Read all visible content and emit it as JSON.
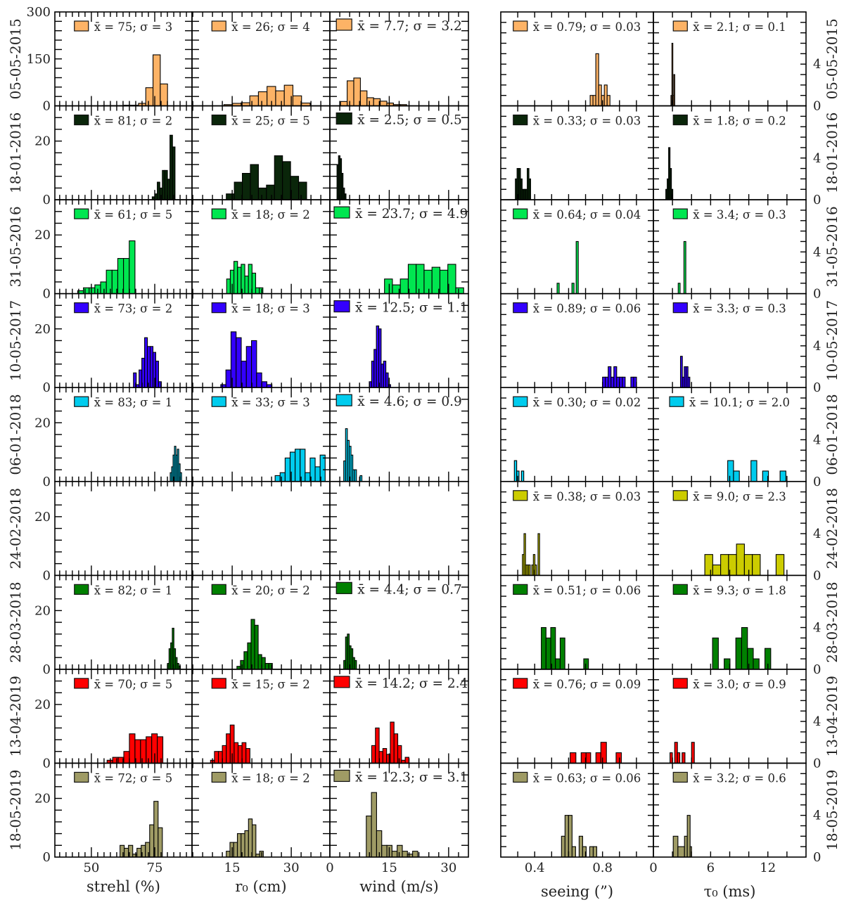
{
  "chart_data": {
    "type": "bar",
    "grid": false,
    "columns": [
      {
        "key": "strehl",
        "xlabel": "strehl (%)",
        "xlim": [
          35.6,
          89.7
        ],
        "xticks": [
          "50",
          "75"
        ],
        "xtick_values": [
          50,
          75
        ],
        "minor_step": 2.5,
        "group": "left"
      },
      {
        "key": "r0",
        "xlabel": "r₀ (cm)",
        "xlim": [
          4.8,
          39.8
        ],
        "xticks": [
          "15",
          "30"
        ],
        "xtick_values": [
          15,
          30
        ],
        "minor_step": 2.5,
        "group": "left"
      },
      {
        "key": "wind",
        "xlabel": "wind (m/s)",
        "xlim": [
          0,
          35
        ],
        "xticks": [
          "0",
          "15",
          "30"
        ],
        "xtick_values": [
          0,
          15,
          30
        ],
        "minor_step": 2.5,
        "group": "left"
      },
      {
        "key": "seeing",
        "xlabel": "seeing (”)",
        "xlim": [
          0.2,
          1.1
        ],
        "xticks": [
          "0.4",
          "0.8"
        ],
        "xtick_values": [
          0.4,
          0.8
        ],
        "minor_step": 0.1,
        "group": "right"
      },
      {
        "key": "tau0",
        "xlabel": "τ₀ (ms)",
        "xlim": [
          0,
          16
        ],
        "xticks": [
          "0",
          "6",
          "12"
        ],
        "xtick_values": [
          0,
          6,
          12
        ],
        "minor_step": 2,
        "group": "right"
      }
    ],
    "left_ylim_first_row": [
      0,
      300
    ],
    "left_yticks_first_row": [
      "300",
      "150",
      "0"
    ],
    "left_ytick_values_first_row": [
      300,
      150,
      0
    ],
    "left_ystep_first_row": 30,
    "left_ylim": [
      0,
      32
    ],
    "left_yticks": [
      "20",
      "0"
    ],
    "left_ytick_values": [
      20,
      0
    ],
    "left_ystep": 4,
    "right_ylim": [
      0,
      9
    ],
    "right_yticks": [
      "4",
      "0"
    ],
    "right_ytick_values": [
      4,
      0
    ],
    "right_ystep": 1,
    "rows": [
      {
        "date": "05-05-2015",
        "color": "#fdb366",
        "panels": [
          {
            "legend": "x̄ = 75; σ = 3",
            "start": 54.3,
            "width": 2.86,
            "counts": [
              1,
              1,
              1,
              2,
              2,
              8,
              58,
              163,
              70
            ]
          },
          {
            "legend": "x̄ = 26; σ = 4",
            "start": 12.9,
            "width": 2.19,
            "counts": [
              4,
              8,
              10,
              32,
              45,
              62,
              48,
              66,
              32,
              9
            ]
          },
          {
            "legend": "x̄ = 7.7; σ = 3.2",
            "start": 2.7,
            "width": 1.67,
            "counts": [
              14,
              80,
              89,
              48,
              26,
              23,
              15,
              9,
              4,
              4
            ]
          },
          {
            "legend": "x̄ = 0.79; σ = 0.03",
            "start": 0.727,
            "width": 0.0167,
            "counts": [
              1,
              1,
              5,
              2,
              1,
              2,
              1
            ]
          },
          {
            "legend": "x̄ = 2.1; σ = 0.1",
            "start": 1.84,
            "width": 0.1,
            "counts": [
              1,
              6,
              1,
              3
            ]
          }
        ]
      },
      {
        "date": "18-01-2016",
        "color": "#0a260a",
        "panels": [
          {
            "legend": "x̄ = 81; σ = 2",
            "start": 74,
            "width": 1,
            "counts": [
              1,
              2,
              6,
              4,
              10,
              10,
              7,
              22,
              18
            ]
          },
          {
            "legend": "x̄ = 25; σ = 5",
            "start": 13.5,
            "width": 2.04,
            "counts": [
              2,
              6,
              9,
              12,
              4,
              5,
              15,
              13,
              8,
              6
            ]
          },
          {
            "legend": "x̄ = 2.5; σ = 0.5",
            "start": 1.8,
            "width": 0.38,
            "counts": [
              12,
              15,
              14,
              9,
              4,
              2
            ]
          },
          {
            "legend": "x̄ = 0.33; σ = 0.03",
            "start": 0.286,
            "width": 0.01,
            "counts": [
              2,
              3,
              3,
              2,
              1,
              1,
              1,
              3,
              2
            ]
          },
          {
            "legend": "x̄ = 1.8; σ = 0.2",
            "start": 1.3,
            "width": 0.147,
            "counts": [
              1,
              2,
              5,
              3,
              1
            ]
          }
        ]
      },
      {
        "date": "31-05-2016",
        "color": "#00e650",
        "panels": [
          {
            "legend": "x̄ = 61; σ = 5",
            "start": 44.6,
            "width": 2.26,
            "counts": [
              1,
              2,
              2,
              3,
              4,
              8,
              8,
              12,
              12,
              18
            ]
          },
          {
            "legend": "x̄ = 18; σ = 2",
            "start": 13.6,
            "width": 0.92,
            "counts": [
              5,
              8,
              11,
              9,
              10,
              6,
              10,
              7,
              2,
              2
            ]
          },
          {
            "legend": "x̄ = 23.7; σ = 4.9",
            "start": 13.8,
            "width": 2.0,
            "counts": [
              5,
              3,
              5,
              10,
              10,
              8,
              9,
              8,
              10,
              2
            ]
          },
          {
            "legend": "x̄ = 0.64; σ = 0.04",
            "start": 0.532,
            "width": 0.0125,
            "counts": [
              1,
              0,
              0,
              0,
              0,
              0,
              0,
              1,
              0,
              5
            ]
          },
          {
            "legend": "x̄ = 3.4; σ = 0.3",
            "start": 2.6,
            "width": 0.2,
            "counts": [
              1,
              0,
              0,
              5
            ]
          }
        ]
      },
      {
        "date": "10-05-2017",
        "color": "#3300ff",
        "panels": [
          {
            "legend": "x̄ = 73; σ = 2",
            "start": 66.6,
            "width": 1.1,
            "counts": [
              5,
              1,
              6,
              10,
              17,
              14,
              14,
              12,
              9,
              2
            ]
          },
          {
            "legend": "x̄ = 18; σ = 3",
            "start": 12.1,
            "width": 1.3,
            "counts": [
              1,
              6,
              19,
              17,
              9,
              14,
              16,
              5,
              2,
              1
            ]
          },
          {
            "legend": "x̄ = 12.5; σ = 1.1",
            "start": 9.95,
            "width": 0.6,
            "counts": [
              2,
              9,
              13,
              21,
              20,
              8,
              9,
              5,
              1
            ]
          },
          {
            "legend": "x̄ = 0.89; σ = 0.06",
            "start": 0.8,
            "width": 0.0167,
            "counts": [
              1,
              1,
              2,
              1,
              2,
              1,
              1,
              1,
              0,
              0,
              1,
              1
            ]
          },
          {
            "legend": "x̄ = 3.3; σ = 0.3",
            "start": 2.84,
            "width": 0.196,
            "counts": [
              3,
              1,
              2,
              2,
              1
            ]
          }
        ]
      },
      {
        "date": "06-01-2018",
        "color": "#00ccee",
        "panels": [
          {
            "legend": "x̄ = 83; σ = 1",
            "start": 81.1,
            "width": 0.56,
            "counts": [
              3,
              5,
              9,
              12,
              9,
              11,
              6,
              3
            ]
          },
          {
            "legend": "x̄ = 33; σ = 3",
            "start": 25.9,
            "width": 1.27,
            "counts": [
              2,
              3,
              8,
              10,
              11,
              11,
              3,
              8,
              5,
              9
            ]
          },
          {
            "legend": "x̄ = 4.6; σ = 0.9",
            "start": 3.5,
            "width": 0.46,
            "counts": [
              7,
              18,
              14,
              12,
              9,
              4,
              4,
              0,
              0,
              2
            ]
          },
          {
            "legend": "x̄ = 0.30; σ = 0.02",
            "start": 0.28,
            "width": 0.0139,
            "counts": [
              2,
              1,
              0,
              1
            ]
          },
          {
            "legend": "x̄ = 10.1; σ = 2.0",
            "start": 7.79,
            "width": 0.61,
            "counts": [
              2,
              1,
              0,
              0,
              2,
              0,
              1,
              0,
              0,
              1
            ]
          }
        ]
      },
      {
        "date": "24-02-2018",
        "color": "#cccc00",
        "panels": [
          {
            "legend": "",
            "counts": []
          },
          {
            "legend": "",
            "counts": []
          },
          {
            "legend": "",
            "counts": []
          },
          {
            "legend": "x̄ = 0.38; σ = 0.03",
            "start": 0.3277,
            "width": 0.0092,
            "counts": [
              2,
              4,
              1,
              1,
              1,
              0,
              1,
              2,
              1,
              0,
              4
            ]
          },
          {
            "legend": "x̄ = 9.0; σ = 2.3",
            "start": 5.39,
            "width": 0.83,
            "counts": [
              2,
              1,
              2,
              2,
              3,
              2,
              2,
              0,
              0,
              2
            ]
          }
        ]
      },
      {
        "date": "28-03-2018",
        "color": "#008000",
        "panels": [
          {
            "legend": "x̄ = 82; σ = 1",
            "start": 80,
            "width": 0.64,
            "counts": [
              2,
              7,
              9,
              14,
              7,
              4,
              2,
              1
            ]
          },
          {
            "legend": "x̄ = 20; σ = 2",
            "start": 16.2,
            "width": 0.9,
            "counts": [
              1,
              3,
              6,
              9,
              17,
              15,
              5,
              4,
              2,
              2
            ]
          },
          {
            "legend": "x̄ = 4.4; σ = 0.7",
            "start": 3.5,
            "width": 0.46,
            "counts": [
              3,
              11,
              12,
              8,
              7,
              4,
              3
            ]
          },
          {
            "legend": "x̄ = 0.51; σ = 0.06",
            "start": 0.439,
            "width": 0.0278,
            "counts": [
              4,
              3,
              4,
              1,
              3,
              0,
              0,
              0,
              0,
              1
            ]
          },
          {
            "legend": "x̄ = 9.3; σ = 1.8",
            "start": 6.2,
            "width": 0.61,
            "counts": [
              3,
              0,
              1,
              0,
              3,
              4,
              2,
              1,
              0,
              2
            ]
          }
        ]
      },
      {
        "date": "13-04-2019",
        "color": "#ff0000",
        "panels": [
          {
            "legend": "x̄ = 70; σ = 5",
            "start": 56.2,
            "width": 2.2,
            "counts": [
              1,
              2,
              2,
              4,
              10,
              8,
              8,
              9,
              10,
              9
            ]
          },
          {
            "legend": "x̄ = 15; σ = 2",
            "start": 9.5,
            "width": 1.0,
            "counts": [
              1,
              4,
              4,
              6,
              10,
              13,
              7,
              6,
              7,
              5
            ]
          },
          {
            "legend": "x̄ = 14.2; σ = 2.4",
            "start": 10.57,
            "width": 0.94,
            "counts": [
              6,
              12,
              4,
              5,
              3,
              14,
              10,
              6,
              1,
              2
            ]
          },
          {
            "legend": "x̄ = 0.76; σ = 0.09",
            "bars": [
              [
                0.609,
                0.643,
                1
              ],
              [
                0.674,
                0.703,
                1
              ],
              [
                0.703,
                0.73,
                1
              ],
              [
                0.761,
                0.79,
                1
              ],
              [
                0.79,
                0.823,
                2
              ],
              [
                0.88,
                0.911,
                1
              ]
            ]
          },
          {
            "legend": "x̄ = 3.0; σ = 0.9",
            "bars": [
              [
                1.74,
                1.99,
                1
              ],
              [
                2.23,
                2.52,
                2
              ],
              [
                2.52,
                2.77,
                1
              ],
              [
                3.01,
                3.31,
                1
              ],
              [
                4.0,
                4.29,
                2
              ]
            ]
          }
        ]
      },
      {
        "date": "18-05-2019",
        "color": "#9f9b65",
        "panels": [
          {
            "legend": "x̄ = 72; σ = 5",
            "start": 61.3,
            "width": 1.67,
            "counts": [
              4,
              3,
              4,
              1,
              3,
              4,
              5,
              11,
              19,
              10
            ]
          },
          {
            "legend": "x̄ = 18; σ = 2",
            "start": 13.5,
            "width": 0.94,
            "counts": [
              2,
              5,
              5,
              8,
              8,
              9,
              13,
              11,
              1,
              2
            ]
          },
          {
            "legend": "x̄ = 12.3; σ = 3.1",
            "start": 9.2,
            "width": 1.3,
            "counts": [
              14,
              22,
              9,
              4,
              4,
              2,
              4,
              2,
              1,
              2
            ]
          },
          {
            "legend": "x̄ = 0.63; σ = 0.06",
            "start": 0.558,
            "width": 0.0208,
            "counts": [
              2,
              4,
              4,
              1,
              0,
              2,
              1,
              0,
              1,
              1
            ]
          },
          {
            "legend": "x̄ = 3.2; σ = 0.6",
            "bars": [
              [
                2.08,
                2.57,
                2
              ],
              [
                2.57,
                3.26,
                1
              ],
              [
                3.26,
                3.55,
                2
              ],
              [
                3.55,
                3.85,
                4
              ],
              [
                3.85,
                4.0,
                1
              ]
            ]
          }
        ]
      }
    ]
  }
}
